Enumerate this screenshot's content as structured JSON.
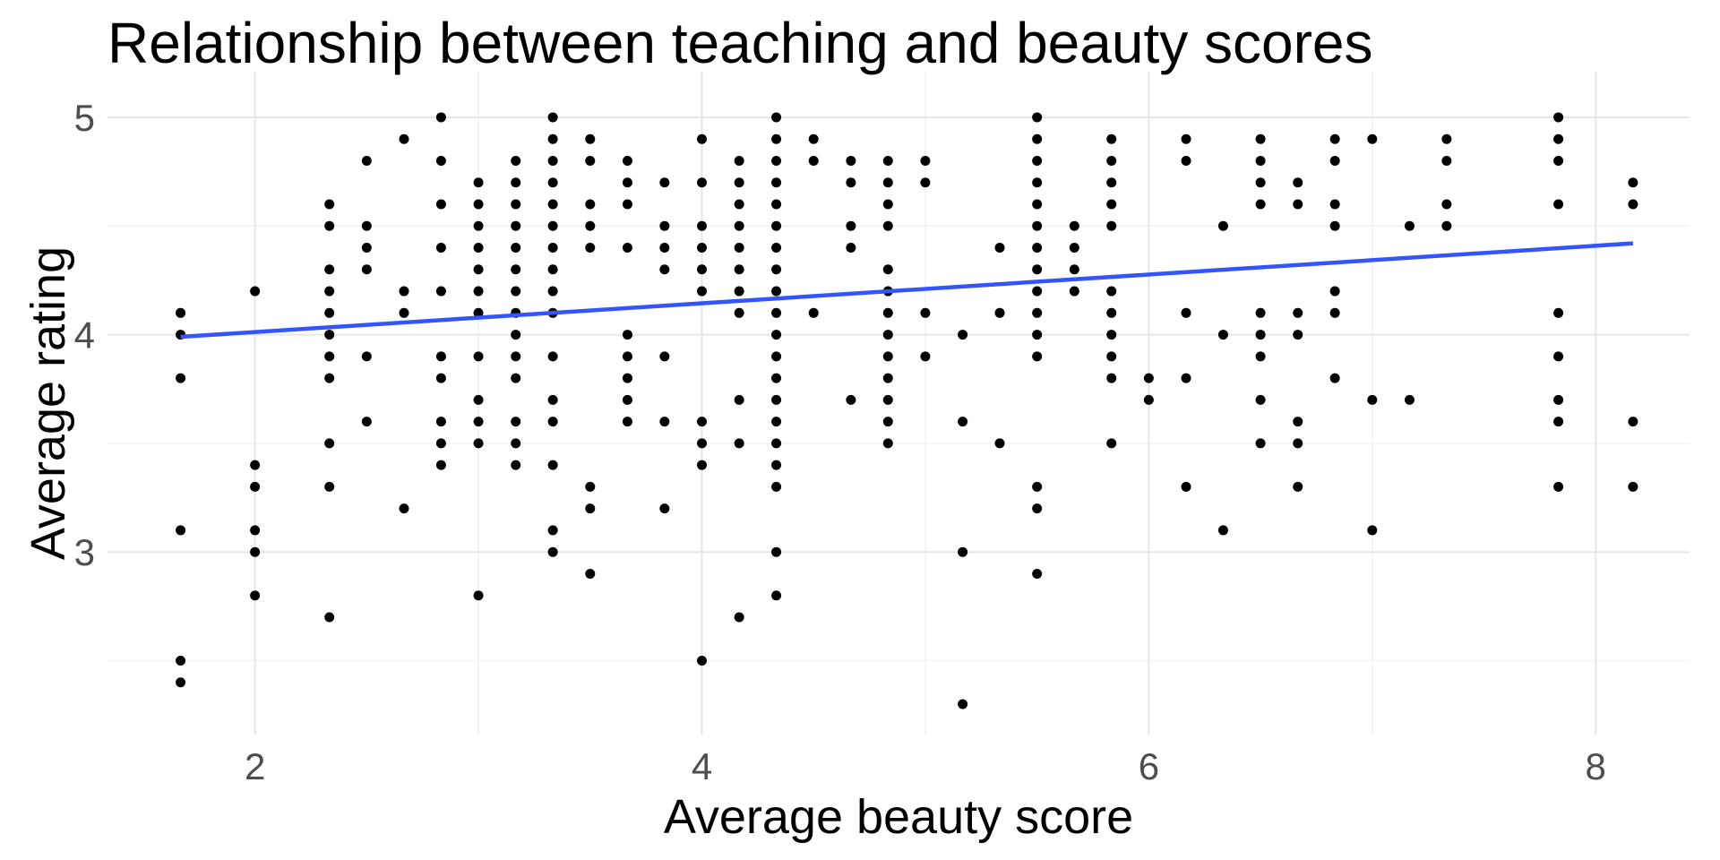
{
  "chart_data": {
    "type": "scatter",
    "title": "Relationship between teaching and beauty scores",
    "xlabel": "Average beauty score",
    "ylabel": "Average rating",
    "xlim": [
      1.34,
      8.42
    ],
    "ylim": [
      2.16,
      5.21
    ],
    "x_ticks": [
      "2",
      "4",
      "6",
      "8"
    ],
    "y_ticks": [
      "3",
      "4",
      "5"
    ],
    "grid": true,
    "point_color": "#000000",
    "line_color": "#3355ff",
    "trend_line": {
      "type": "linear",
      "x": [
        1.667,
        8.167
      ],
      "y": [
        3.99,
        4.42
      ]
    },
    "columns": [
      {
        "x": 1.667,
        "y": [
          4.1,
          4.0,
          3.8,
          3.1,
          2.5,
          2.4
        ]
      },
      {
        "x": 2.0,
        "y": [
          4.2,
          3.4,
          3.3,
          3.1,
          3.0,
          2.8
        ]
      },
      {
        "x": 2.333,
        "y": [
          4.6,
          4.5,
          4.3,
          4.2,
          4.1,
          4.0,
          3.9,
          3.8,
          3.5,
          3.3,
          2.7
        ]
      },
      {
        "x": 2.5,
        "y": [
          4.8,
          4.5,
          4.4,
          4.3,
          3.9,
          3.6
        ]
      },
      {
        "x": 2.667,
        "y": [
          4.9,
          4.2,
          4.1,
          3.2
        ]
      },
      {
        "x": 2.833,
        "y": [
          5.0,
          4.8,
          4.6,
          4.4,
          4.2,
          3.9,
          3.8,
          3.6,
          3.5,
          3.4
        ]
      },
      {
        "x": 3.0,
        "y": [
          4.7,
          4.6,
          4.5,
          4.4,
          4.3,
          4.2,
          4.1,
          3.9,
          3.7,
          3.6,
          3.5,
          2.8
        ]
      },
      {
        "x": 3.167,
        "y": [
          4.8,
          4.7,
          4.6,
          4.5,
          4.4,
          4.3,
          4.2,
          4.1,
          4.0,
          3.9,
          3.8,
          3.6,
          3.5,
          3.4
        ]
      },
      {
        "x": 3.333,
        "y": [
          5.0,
          4.9,
          4.8,
          4.7,
          4.6,
          4.5,
          4.4,
          4.3,
          4.2,
          4.1,
          3.9,
          3.7,
          3.6,
          3.4,
          3.1,
          3.0
        ]
      },
      {
        "x": 3.5,
        "y": [
          4.9,
          4.8,
          4.6,
          4.5,
          4.4,
          3.3,
          3.2,
          2.9
        ]
      },
      {
        "x": 3.667,
        "y": [
          4.8,
          4.7,
          4.6,
          4.4,
          4.0,
          3.9,
          3.8,
          3.7,
          3.6
        ]
      },
      {
        "x": 3.833,
        "y": [
          4.7,
          4.5,
          4.4,
          4.3,
          3.9,
          3.6,
          3.2
        ]
      },
      {
        "x": 4.0,
        "y": [
          4.9,
          4.7,
          4.5,
          4.4,
          4.3,
          4.2,
          3.6,
          3.5,
          3.4,
          2.5
        ]
      },
      {
        "x": 4.167,
        "y": [
          4.8,
          4.7,
          4.6,
          4.5,
          4.4,
          4.3,
          4.2,
          4.1,
          3.7,
          3.5,
          2.7
        ]
      },
      {
        "x": 4.333,
        "y": [
          5.0,
          4.9,
          4.8,
          4.7,
          4.6,
          4.5,
          4.4,
          4.3,
          4.2,
          4.1,
          4.0,
          3.9,
          3.8,
          3.7,
          3.6,
          3.5,
          3.4,
          3.3,
          3.0,
          2.8
        ]
      },
      {
        "x": 4.5,
        "y": [
          4.9,
          4.8,
          4.1
        ]
      },
      {
        "x": 4.667,
        "y": [
          4.8,
          4.7,
          4.5,
          4.4,
          3.7
        ]
      },
      {
        "x": 4.833,
        "y": [
          4.8,
          4.7,
          4.6,
          4.5,
          4.3,
          4.2,
          4.1,
          4.0,
          3.9,
          3.8,
          3.7,
          3.6,
          3.5
        ]
      },
      {
        "x": 5.0,
        "y": [
          4.8,
          4.7,
          4.1,
          3.9
        ]
      },
      {
        "x": 5.167,
        "y": [
          4.0,
          3.6,
          3.0,
          2.3
        ]
      },
      {
        "x": 5.333,
        "y": [
          4.4,
          4.1,
          3.5
        ]
      },
      {
        "x": 5.5,
        "y": [
          5.0,
          4.9,
          4.8,
          4.7,
          4.6,
          4.5,
          4.4,
          4.3,
          4.2,
          4.1,
          4.0,
          3.9,
          3.3,
          3.2,
          2.9
        ]
      },
      {
        "x": 5.667,
        "y": [
          4.5,
          4.4,
          4.3,
          4.2
        ]
      },
      {
        "x": 5.833,
        "y": [
          4.9,
          4.8,
          4.7,
          4.6,
          4.5,
          4.2,
          4.1,
          4.0,
          3.9,
          3.8,
          3.5
        ]
      },
      {
        "x": 6.0,
        "y": [
          3.8,
          3.7
        ]
      },
      {
        "x": 6.167,
        "y": [
          4.9,
          4.8,
          4.1,
          3.8,
          3.3
        ]
      },
      {
        "x": 6.333,
        "y": [
          4.5,
          4.0,
          3.1
        ]
      },
      {
        "x": 6.5,
        "y": [
          4.9,
          4.8,
          4.7,
          4.6,
          4.1,
          4.0,
          3.9,
          3.7,
          3.5
        ]
      },
      {
        "x": 6.667,
        "y": [
          4.7,
          4.6,
          4.1,
          4.0,
          3.6,
          3.5,
          3.3
        ]
      },
      {
        "x": 6.833,
        "y": [
          4.9,
          4.8,
          4.6,
          4.5,
          4.2,
          4.1,
          3.8
        ]
      },
      {
        "x": 7.0,
        "y": [
          4.9,
          3.7,
          3.1
        ]
      },
      {
        "x": 7.167,
        "y": [
          4.5,
          3.7
        ]
      },
      {
        "x": 7.333,
        "y": [
          4.9,
          4.8,
          4.6,
          4.5
        ]
      },
      {
        "x": 7.833,
        "y": [
          5.0,
          4.9,
          4.8,
          4.6,
          4.1,
          3.9,
          3.7,
          3.6,
          3.3
        ]
      },
      {
        "x": 8.167,
        "y": [
          4.7,
          4.6,
          3.6,
          3.3
        ]
      }
    ]
  }
}
